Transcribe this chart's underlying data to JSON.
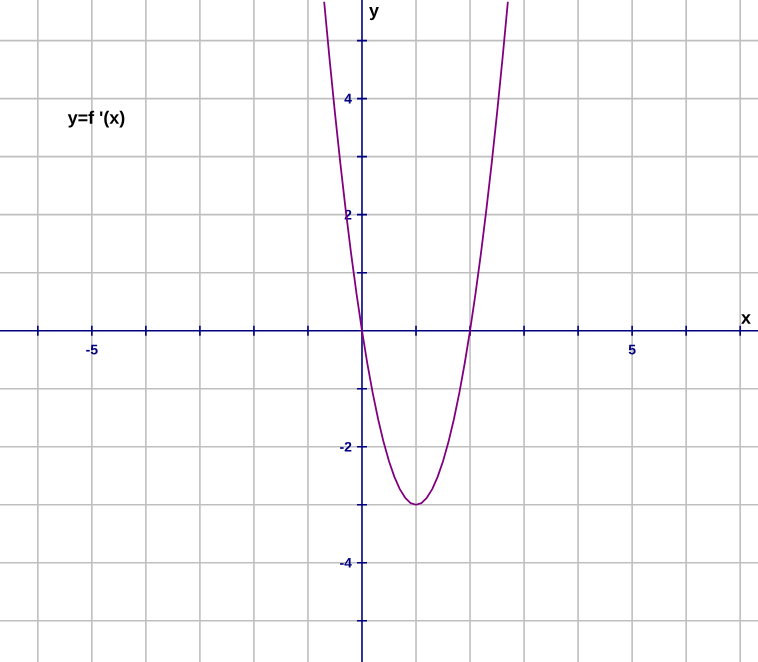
{
  "chart_data": {
    "type": "line",
    "xlabel": "x",
    "ylabel": "y",
    "annotations": [
      "y=f '(x)"
    ],
    "x": [
      -0.7,
      -0.6,
      -0.5,
      -0.4,
      -0.3,
      -0.2,
      -0.1,
      0,
      0.1,
      0.2,
      0.3,
      0.4,
      0.5,
      0.6,
      0.7,
      0.8,
      0.9,
      1.0,
      1.1,
      1.2,
      1.3,
      1.4,
      1.5,
      1.6,
      1.7,
      1.8,
      1.9,
      2.0,
      2.1,
      2.2,
      2.3,
      2.4,
      2.5,
      2.6,
      2.7
    ],
    "series": [
      {
        "color": "#800080",
        "values": [
          5.67,
          4.68,
          3.75,
          2.88,
          2.07,
          1.32,
          0.63,
          0,
          -0.57,
          -1.08,
          -1.53,
          -1.92,
          -2.25,
          -2.52,
          -2.73,
          -2.88,
          -2.97,
          -3,
          -2.97,
          -2.88,
          -2.73,
          -2.52,
          -2.25,
          -1.92,
          -1.53,
          -1.08,
          -0.57,
          0,
          0.63,
          1.32,
          2.07,
          2.88,
          3.75,
          4.68,
          5.67
        ]
      }
    ],
    "xlim": [
      -6.7,
      7.33
    ],
    "ylim": [
      -5.71,
      5.7
    ],
    "xticks": [
      {
        "value": -6,
        "label": null
      },
      -5,
      {
        "value": -4,
        "label": null
      },
      {
        "value": -3,
        "label": null
      },
      {
        "value": -2,
        "label": null
      },
      {
        "value": -1,
        "label": null
      },
      {
        "value": 1,
        "label": null
      },
      {
        "value": 2,
        "label": null
      },
      {
        "value": 3,
        "label": null
      },
      {
        "value": 4,
        "label": null
      },
      5,
      {
        "value": 6,
        "label": null
      },
      {
        "value": 7,
        "label": null
      }
    ],
    "yticks": [
      {
        "value": -5,
        "label": null
      },
      -4,
      {
        "value": -3,
        "label": null
      },
      -2,
      {
        "value": -1,
        "label": null
      },
      {
        "value": 1,
        "label": null
      },
      2,
      {
        "value": 3,
        "label": null
      },
      4,
      {
        "value": 5,
        "label": null
      }
    ],
    "grid": true,
    "marker": "none",
    "line_style": "solid"
  }
}
